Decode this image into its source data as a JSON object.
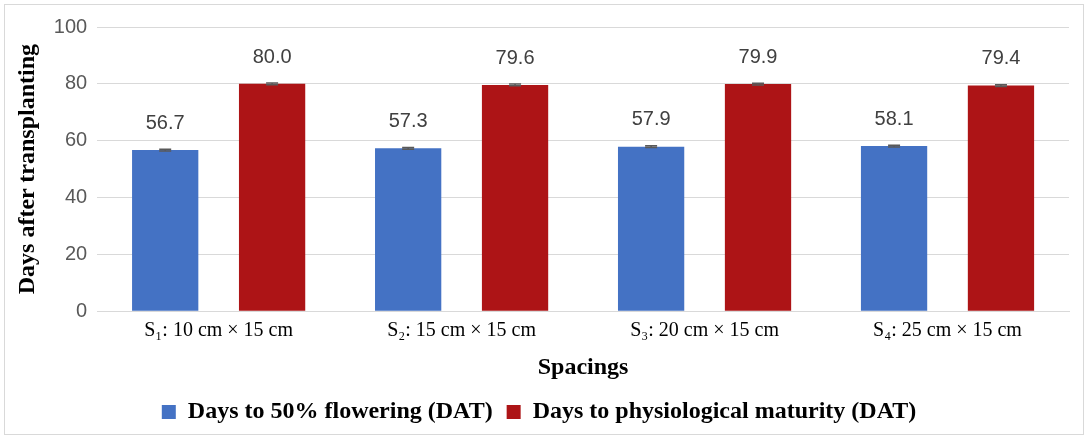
{
  "chart_data": {
    "type": "bar",
    "xlabel": "Spacings",
    "ylabel": "Days after transplanting",
    "categories": [
      "S₁: 10 cm × 15 cm",
      "S₂: 15 cm × 15 cm",
      "S₃: 20 cm × 15 cm",
      "S₄: 25 cm × 15 cm"
    ],
    "series": [
      {
        "name": "Days to 50% flowering (DAT)",
        "color": "#4472c4",
        "values": [
          56.7,
          57.3,
          57.9,
          58.1
        ],
        "errors": [
          0.3,
          0.3,
          0.3,
          0.3
        ]
      },
      {
        "name": "Days to physiological maturity (DAT)",
        "color": "#ad1416",
        "values": [
          80.0,
          79.6,
          79.9,
          79.4
        ],
        "errors": [
          0.3,
          0.3,
          0.3,
          0.3
        ]
      }
    ],
    "value_labels": [
      [
        "56.7",
        "57.3",
        "57.9",
        "58.1"
      ],
      [
        "80.0",
        "79.6",
        "79.9",
        "79.4"
      ]
    ],
    "ylim": [
      0,
      100
    ],
    "yticks": [
      0,
      20,
      40,
      60,
      80,
      100
    ],
    "grid": "y",
    "legend": "bottom"
  }
}
